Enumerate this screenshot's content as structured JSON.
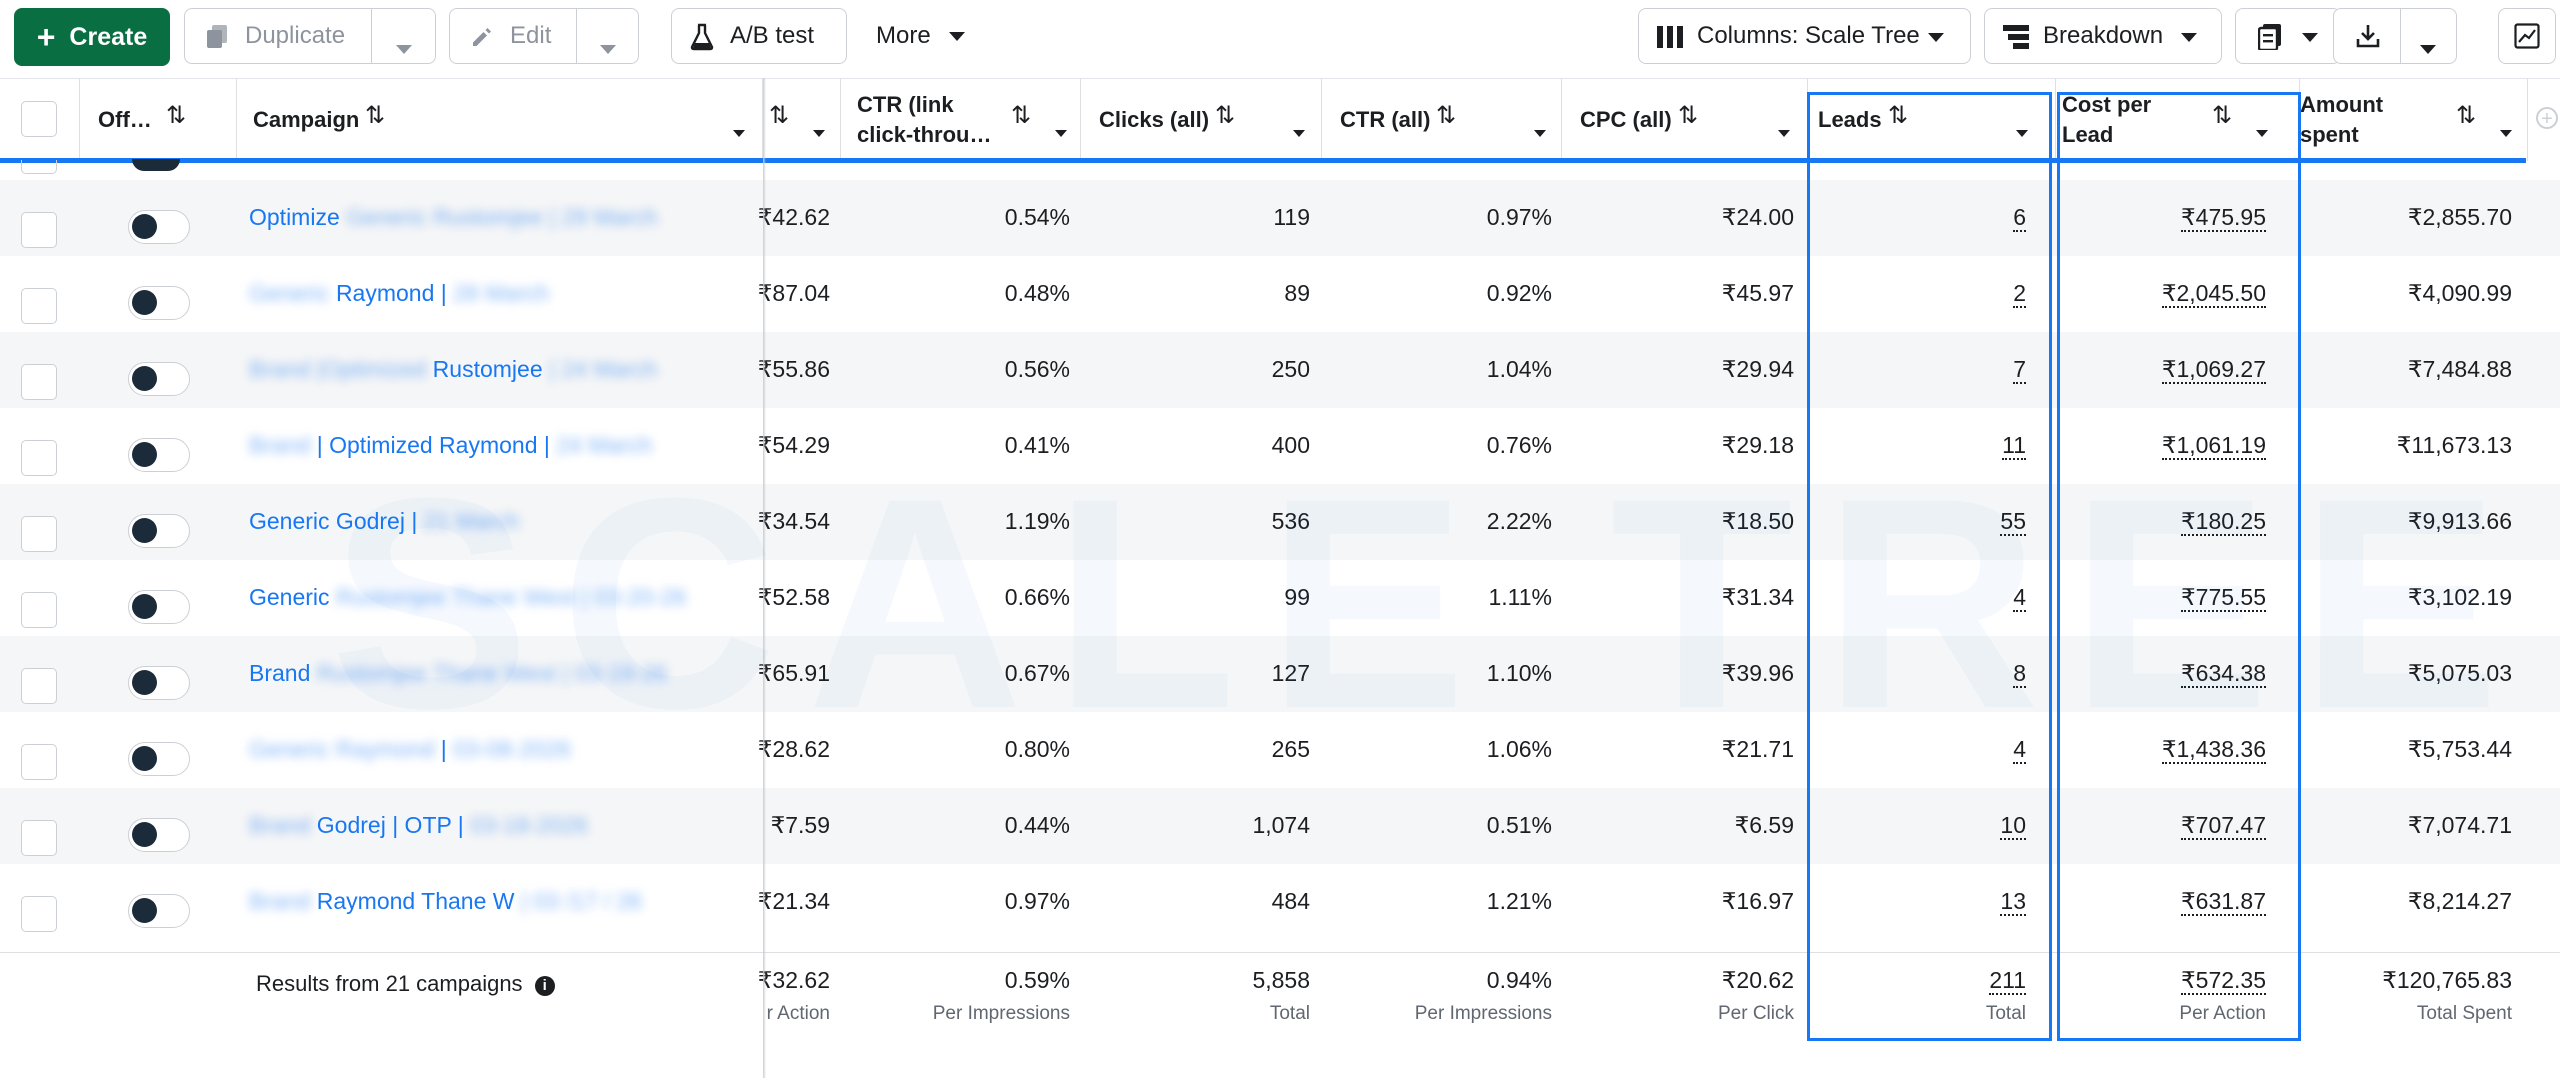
{
  "toolbar": {
    "create": "Create",
    "duplicate": "Duplicate",
    "edit": "Edit",
    "ab_test": "A/B test",
    "more": "More",
    "columns": "Columns: Scale Tree",
    "breakdown": "Breakdown"
  },
  "columns": {
    "off": "Off…",
    "campaign": "Campaign",
    "ctr_link_1": "CTR (link",
    "ctr_link_2": "click-throu…",
    "clicks_all": "Clicks (all)",
    "ctr_all": "CTR (all)",
    "cpc_all": "CPC (all)",
    "leads": "Leads",
    "cpl_1": "Cost per",
    "cpl_2": "Lead",
    "amount_1": "Amount",
    "amount_2": "spent"
  },
  "rows": [
    {
      "camp_a": "Optimize",
      "camp_b": " Generic Rustomjee | 29 March",
      "hidden": "₹42.62",
      "ctr_link": "0.54%",
      "clicks": "119",
      "ctr_all": "0.97%",
      "cpc": "₹24.00",
      "leads": "6",
      "cpl": "₹475.95",
      "spent": "₹2,855.70"
    },
    {
      "camp_a": "Raymond |",
      "camp_pre": "Generic ",
      "camp_b": " 28 March",
      "hidden": "₹87.04",
      "ctr_link": "0.48%",
      "clicks": "89",
      "ctr_all": "0.92%",
      "cpc": "₹45.97",
      "leads": "2",
      "cpl": "₹2,045.50",
      "spent": "₹4,090.99"
    },
    {
      "camp_a": "Rustomjee",
      "camp_pre": "Brand |Optimized ",
      "camp_b": " | 24 March",
      "hidden": "₹55.86",
      "ctr_link": "0.56%",
      "clicks": "250",
      "ctr_all": "1.04%",
      "cpc": "₹29.94",
      "leads": "7",
      "cpl": "₹1,069.27",
      "spent": "₹7,484.88"
    },
    {
      "camp_a": "| Optimized Raymond |",
      "camp_pre": "Brand ",
      "camp_b": " 24 March",
      "hidden": "₹54.29",
      "ctr_link": "0.41%",
      "clicks": "400",
      "ctr_all": "0.76%",
      "cpc": "₹29.18",
      "leads": "11",
      "cpl": "₹1,061.19",
      "spent": "₹11,673.13"
    },
    {
      "camp_a": "Generic Godrej |",
      "camp_pre": "",
      "camp_b": " 21 March",
      "hidden": "₹34.54",
      "ctr_link": "1.19%",
      "clicks": "536",
      "ctr_all": "2.22%",
      "cpc": "₹18.50",
      "leads": "55",
      "cpl": "₹180.25",
      "spent": "₹9,913.66"
    },
    {
      "camp_a": "Generic",
      "camp_pre": "",
      "camp_b": " Rustomjee Thane West | 03-20-26",
      "hidden": "₹52.58",
      "ctr_link": "0.66%",
      "clicks": "99",
      "ctr_all": "1.11%",
      "cpc": "₹31.34",
      "leads": "4",
      "cpl": "₹775.55",
      "spent": "₹3,102.19"
    },
    {
      "camp_a": "Brand",
      "camp_pre": "",
      "camp_b": " Rustomjee Thane West | 03-19-26",
      "hidden": "₹65.91",
      "ctr_link": "0.67%",
      "clicks": "127",
      "ctr_all": "1.10%",
      "cpc": "₹39.96",
      "leads": "8",
      "cpl": "₹634.38",
      "spent": "₹5,075.03"
    },
    {
      "camp_a": "|",
      "camp_pre": "Generic Raymond ",
      "camp_b": " 03-08-2026",
      "hidden": "₹28.62",
      "ctr_link": "0.80%",
      "clicks": "265",
      "ctr_all": "1.06%",
      "cpc": "₹21.71",
      "leads": "4",
      "cpl": "₹1,438.36",
      "spent": "₹5,753.44"
    },
    {
      "camp_a": "Godrej | OTP |",
      "camp_pre": "Brand ",
      "camp_b": " 03-18-2026",
      "hidden": "₹7.59",
      "ctr_link": "0.44%",
      "clicks": "1,074",
      "ctr_all": "0.51%",
      "cpc": "₹6.59",
      "leads": "10",
      "cpl": "₹707.47",
      "spent": "₹7,074.71"
    },
    {
      "camp_a": "Raymond Thane W",
      "camp_pre": "Brand ",
      "camp_b": " | 03 /17 / 26",
      "hidden": "₹21.34",
      "ctr_link": "0.97%",
      "clicks": "484",
      "ctr_all": "1.21%",
      "cpc": "₹16.97",
      "leads": "13",
      "cpl": "₹631.87",
      "spent": "₹8,214.27"
    }
  ],
  "totals": {
    "label": "Results from 21 campaigns",
    "hidden": "₹32.62",
    "hidden_sub": "r Action",
    "ctr_link": "0.59%",
    "ctr_link_sub": "Per Impressions",
    "clicks": "5,858",
    "clicks_sub": "Total",
    "ctr_all": "0.94%",
    "ctr_all_sub": "Per Impressions",
    "cpc": "₹20.62",
    "cpc_sub": "Per Click",
    "leads": "211",
    "leads_sub": "Total",
    "cpl": "₹572.35",
    "cpl_sub": "Per Action",
    "spent": "₹120,765.83",
    "spent_sub": "Total Spent"
  },
  "watermark": "SCALE TREE",
  "colors": {
    "create": "#0a6e43",
    "link": "#1877f2",
    "highlight": "#1877f2"
  }
}
